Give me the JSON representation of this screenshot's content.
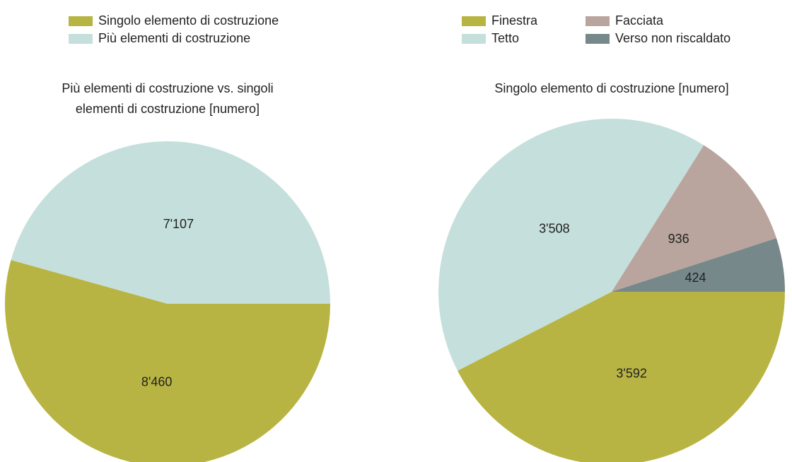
{
  "chart_data": [
    {
      "type": "pie",
      "title": [
        "Più elementi di costruzione vs. singoli",
        "elementi di costruzione  [numero]"
      ],
      "categories": [
        "Singolo elemento di costruzione",
        "Più elementi di costruzione"
      ],
      "values": [
        8460,
        7107
      ],
      "value_labels": [
        "8'460",
        "7'107"
      ],
      "colors": [
        "#b8b443",
        "#c5e0dc"
      ]
    },
    {
      "type": "pie",
      "title": [
        "Singolo elemento di costruzione [numero]"
      ],
      "categories": [
        "Finestra",
        "Tetto",
        "Facciata",
        "Verso non riscaldato"
      ],
      "values": [
        3592,
        3508,
        936,
        424
      ],
      "value_labels": [
        "3'592",
        "3'508",
        "936",
        "424"
      ],
      "colors": [
        "#b8b443",
        "#c5e0dc",
        "#b9a59d",
        "#76888a"
      ]
    }
  ]
}
